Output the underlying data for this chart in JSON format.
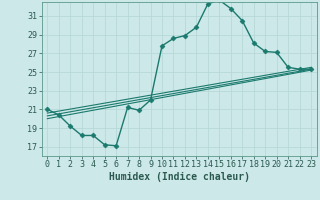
{
  "xlabel": "Humidex (Indice chaleur)",
  "ylabel": "",
  "background_color": "#cde8e8",
  "grid_color": "#b8d8d8",
  "line_color": "#1a7a6e",
  "xlim": [
    -0.5,
    23.5
  ],
  "ylim": [
    16.0,
    32.5
  ],
  "xticks": [
    0,
    1,
    2,
    3,
    4,
    5,
    6,
    7,
    8,
    9,
    10,
    11,
    12,
    13,
    14,
    15,
    16,
    17,
    18,
    19,
    20,
    21,
    22,
    23
  ],
  "yticks": [
    17,
    19,
    21,
    23,
    25,
    27,
    29,
    31
  ],
  "lines": [
    {
      "x": [
        0,
        1,
        2,
        3,
        4,
        5,
        6,
        7,
        8,
        9,
        10,
        11,
        12,
        13,
        14,
        15,
        16,
        17,
        18,
        19,
        20,
        21,
        22,
        23
      ],
      "y": [
        21.0,
        20.4,
        19.2,
        18.2,
        18.2,
        17.2,
        17.1,
        21.2,
        20.9,
        22.0,
        27.8,
        28.6,
        28.9,
        29.8,
        32.3,
        32.7,
        31.8,
        30.5,
        28.1,
        27.2,
        27.1,
        25.5,
        25.3,
        25.3
      ],
      "marker": "D",
      "markersize": 2.5,
      "linewidth": 1.0
    },
    {
      "x": [
        0,
        23
      ],
      "y": [
        20.0,
        25.2
      ],
      "marker": null,
      "linewidth": 0.8
    },
    {
      "x": [
        0,
        23
      ],
      "y": [
        20.3,
        25.3
      ],
      "marker": null,
      "linewidth": 0.8
    },
    {
      "x": [
        0,
        23
      ],
      "y": [
        20.6,
        25.5
      ],
      "marker": null,
      "linewidth": 0.8
    }
  ],
  "font_family": "monospace",
  "xlabel_fontsize": 7,
  "tick_fontsize": 6
}
